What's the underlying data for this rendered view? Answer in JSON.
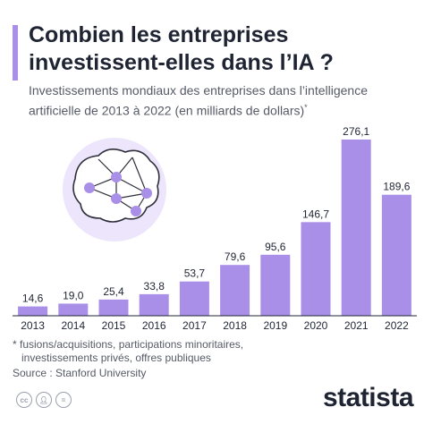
{
  "title": "Combien les entreprises investissent-elles dans l’IA ?",
  "subtitle": "Investissements mondiaux des entreprises dans l’intelligence artificielle de 2013 à 2022 (en milliards de dollars)",
  "subtitle_marker": "*",
  "footnote_line1": "* fusions/acquisitions, participations minoritaires,",
  "footnote_line2": "investissements privés, offres publiques",
  "source": "Source : Stanford University",
  "brand": "statista",
  "license_icons": [
    "cc-icon",
    "person-icon",
    "equals-icon"
  ],
  "colors": {
    "bar": "#a98fe8",
    "accent": "#a98fe8",
    "text": "#1f2433",
    "muted": "#555a66"
  },
  "chart_data": {
    "type": "bar",
    "categories": [
      "2013",
      "2014",
      "2015",
      "2016",
      "2017",
      "2018",
      "2019",
      "2020",
      "2021",
      "2022"
    ],
    "values": [
      14.6,
      19.0,
      25.4,
      33.8,
      53.7,
      79.6,
      95.6,
      146.7,
      276.1,
      189.6
    ],
    "value_labels": [
      "14,6",
      "19,0",
      "25,4",
      "33,8",
      "53,7",
      "79,6",
      "95,6",
      "146,7",
      "276,1",
      "189,6"
    ],
    "xlabel": "",
    "ylabel": "",
    "ylim": [
      0,
      276.1
    ],
    "grid": false
  }
}
